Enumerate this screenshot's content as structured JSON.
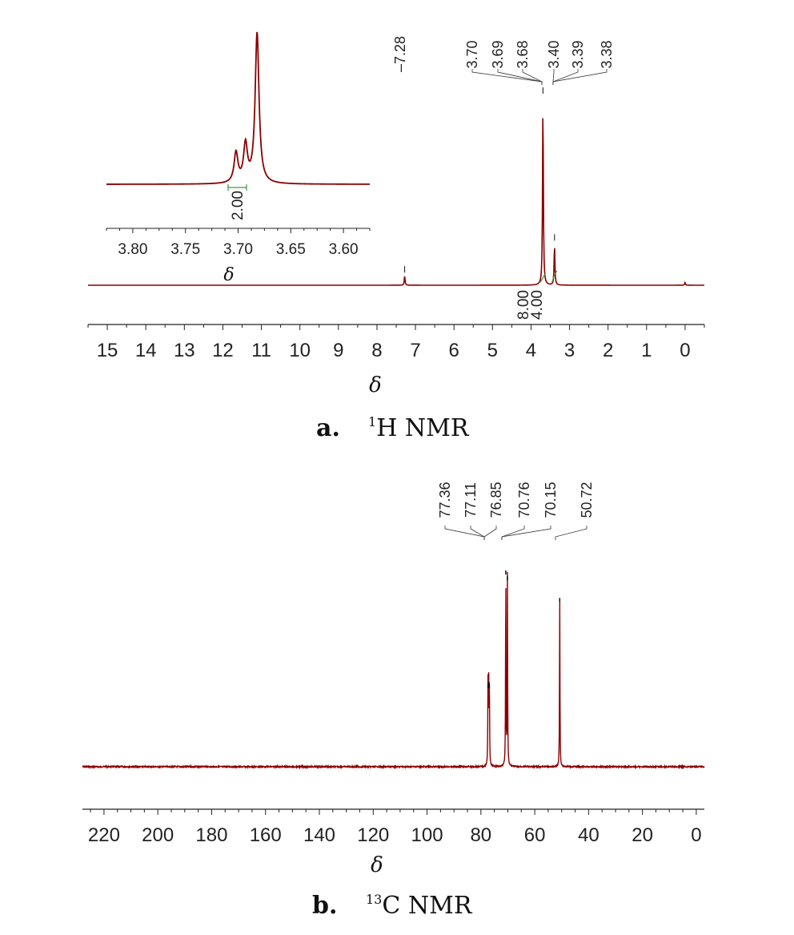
{
  "colors": {
    "spectrum": "#8b0000",
    "axis": "#222222",
    "integral": "#3a9a3a",
    "peak_tick": "#111111"
  },
  "chart_data": [
    {
      "panel": "a",
      "type": "line",
      "caption": {
        "letter": "a.",
        "sup": "1",
        "text": "H NMR"
      },
      "xlabel": "δ",
      "xlim": [
        15.5,
        -0.5
      ],
      "xticks": [
        15,
        14,
        13,
        12,
        11,
        10,
        9,
        8,
        7,
        6,
        5,
        4,
        3,
        2,
        1,
        0
      ],
      "peaks": [
        {
          "shift": 7.28,
          "height": 0.05
        },
        {
          "shift": 3.69,
          "height": 1.0
        },
        {
          "shift": 3.39,
          "height": 0.22
        },
        {
          "shift": 0.0,
          "height": 0.015
        }
      ],
      "peak_labels": [
        "7.28",
        "3.70",
        "3.69",
        "3.68",
        "3.40",
        "3.39",
        "3.38"
      ],
      "integrals": [
        {
          "value": "8.00",
          "shift": 3.69
        },
        {
          "value": "4.00",
          "shift": 3.39
        }
      ],
      "inset": {
        "xlabel": "δ",
        "xlim": [
          3.825,
          3.575
        ],
        "xticks": [
          "3.80",
          "3.75",
          "3.70",
          "3.65",
          "3.60"
        ],
        "peaks": [
          {
            "shift": 3.702,
            "height": 0.2
          },
          {
            "shift": 3.693,
            "height": 0.25
          },
          {
            "shift": 3.682,
            "height": 1.0
          }
        ],
        "integral": {
          "value": "2.00"
        }
      }
    },
    {
      "panel": "b",
      "type": "line",
      "caption": {
        "letter": "b.",
        "sup": "13",
        "text": "C NMR"
      },
      "xlabel": "δ",
      "xlim": [
        228,
        -3
      ],
      "xticks": [
        220,
        200,
        180,
        160,
        140,
        120,
        100,
        80,
        60,
        40,
        20,
        0
      ],
      "peaks": [
        {
          "shift": 77.36,
          "height": 0.42
        },
        {
          "shift": 77.11,
          "height": 0.43
        },
        {
          "shift": 76.85,
          "height": 0.42
        },
        {
          "shift": 70.76,
          "height": 1.0
        },
        {
          "shift": 70.15,
          "height": 0.97
        },
        {
          "shift": 50.72,
          "height": 0.86
        }
      ],
      "peak_labels": [
        "77.36",
        "77.11",
        "76.85",
        "70.76",
        "70.15",
        "50.72"
      ]
    }
  ]
}
